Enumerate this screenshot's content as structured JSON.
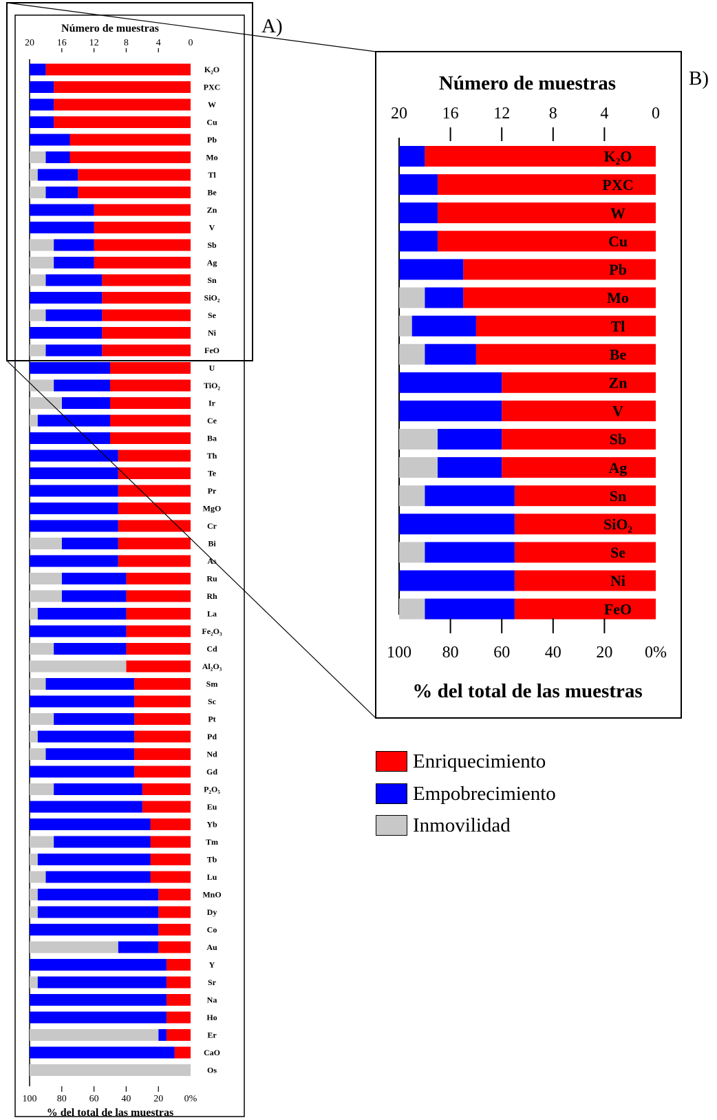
{
  "chart_data": {
    "type": "bar",
    "stacked": true,
    "orientation": "horizontal",
    "panel_a_label": "A)",
    "panel_b_label": "B)",
    "top_axis_title": "Número de muestras",
    "top_axis_ticks": [
      "20",
      "16",
      "12",
      "8",
      "4",
      "0"
    ],
    "top_axis_range": [
      20,
      0
    ],
    "bottom_axis_title": "% del total de las muestras",
    "bottom_axis_ticks": [
      "100",
      "80",
      "60",
      "40",
      "20",
      "0%"
    ],
    "bottom_axis_range": [
      100,
      0
    ],
    "series": [
      {
        "name": "Enriquecimiento",
        "color": "#ff0000"
      },
      {
        "name": "Empobrecimiento",
        "color": "#0000ff"
      },
      {
        "name": "Inmovilidad",
        "color": "#c8c8c8"
      }
    ],
    "categories": [
      {
        "label": "K₂O",
        "enr": 18,
        "emp": 2,
        "inm": 0
      },
      {
        "label": "PXC",
        "enr": 17,
        "emp": 3,
        "inm": 0
      },
      {
        "label": "W",
        "enr": 17,
        "emp": 3,
        "inm": 0
      },
      {
        "label": "Cu",
        "enr": 17,
        "emp": 3,
        "inm": 0
      },
      {
        "label": "Pb",
        "enr": 15,
        "emp": 5,
        "inm": 0
      },
      {
        "label": "Mo",
        "enr": 15,
        "emp": 3,
        "inm": 2
      },
      {
        "label": "Tl",
        "enr": 14,
        "emp": 5,
        "inm": 1
      },
      {
        "label": "Be",
        "enr": 14,
        "emp": 4,
        "inm": 2
      },
      {
        "label": "Zn",
        "enr": 12,
        "emp": 8,
        "inm": 0
      },
      {
        "label": "V",
        "enr": 12,
        "emp": 8,
        "inm": 0
      },
      {
        "label": "Sb",
        "enr": 12,
        "emp": 5,
        "inm": 3
      },
      {
        "label": "Ag",
        "enr": 12,
        "emp": 5,
        "inm": 3
      },
      {
        "label": "Sn",
        "enr": 11,
        "emp": 7,
        "inm": 2
      },
      {
        "label": "SiO₂",
        "enr": 11,
        "emp": 9,
        "inm": 0
      },
      {
        "label": "Se",
        "enr": 11,
        "emp": 7,
        "inm": 2
      },
      {
        "label": "Ni",
        "enr": 11,
        "emp": 9,
        "inm": 0
      },
      {
        "label": "FeO",
        "enr": 11,
        "emp": 7,
        "inm": 2
      },
      {
        "label": "U",
        "enr": 10,
        "emp": 10,
        "inm": 0
      },
      {
        "label": "TiO₂",
        "enr": 10,
        "emp": 7,
        "inm": 3
      },
      {
        "label": "Ir",
        "enr": 10,
        "emp": 6,
        "inm": 4
      },
      {
        "label": "Ce",
        "enr": 10,
        "emp": 9,
        "inm": 1
      },
      {
        "label": "Ba",
        "enr": 10,
        "emp": 10,
        "inm": 0
      },
      {
        "label": "Th",
        "enr": 9,
        "emp": 11,
        "inm": 0
      },
      {
        "label": "Te",
        "enr": 9,
        "emp": 11,
        "inm": 0
      },
      {
        "label": "Pr",
        "enr": 9,
        "emp": 11,
        "inm": 0
      },
      {
        "label": "MgO",
        "enr": 9,
        "emp": 11,
        "inm": 0
      },
      {
        "label": "Cr",
        "enr": 9,
        "emp": 11,
        "inm": 0
      },
      {
        "label": "Bi",
        "enr": 9,
        "emp": 7,
        "inm": 4
      },
      {
        "label": "As",
        "enr": 9,
        "emp": 11,
        "inm": 0
      },
      {
        "label": "Ru",
        "enr": 8,
        "emp": 8,
        "inm": 4
      },
      {
        "label": "Rh",
        "enr": 8,
        "emp": 8,
        "inm": 4
      },
      {
        "label": "La",
        "enr": 8,
        "emp": 11,
        "inm": 1
      },
      {
        "label": "Fe₂O₃",
        "enr": 8,
        "emp": 12,
        "inm": 0
      },
      {
        "label": "Cd",
        "enr": 8,
        "emp": 9,
        "inm": 3
      },
      {
        "label": "Al₂O₃",
        "enr": 8,
        "emp": 0,
        "inm": 12
      },
      {
        "label": "Sm",
        "enr": 7,
        "emp": 11,
        "inm": 2
      },
      {
        "label": "Sc",
        "enr": 7,
        "emp": 13,
        "inm": 0
      },
      {
        "label": "Pt",
        "enr": 7,
        "emp": 10,
        "inm": 3
      },
      {
        "label": "Pd",
        "enr": 7,
        "emp": 12,
        "inm": 1
      },
      {
        "label": "Nd",
        "enr": 7,
        "emp": 11,
        "inm": 2
      },
      {
        "label": "Gd",
        "enr": 7,
        "emp": 13,
        "inm": 0
      },
      {
        "label": "P₂O₅",
        "enr": 6,
        "emp": 11,
        "inm": 3
      },
      {
        "label": "Eu",
        "enr": 6,
        "emp": 14,
        "inm": 0
      },
      {
        "label": "Yb",
        "enr": 5,
        "emp": 15,
        "inm": 0
      },
      {
        "label": "Tm",
        "enr": 5,
        "emp": 12,
        "inm": 3
      },
      {
        "label": "Tb",
        "enr": 5,
        "emp": 14,
        "inm": 1
      },
      {
        "label": "Lu",
        "enr": 5,
        "emp": 13,
        "inm": 2
      },
      {
        "label": "MnO",
        "enr": 4,
        "emp": 15,
        "inm": 1
      },
      {
        "label": "Dy",
        "enr": 4,
        "emp": 15,
        "inm": 1
      },
      {
        "label": "Co",
        "enr": 4,
        "emp": 16,
        "inm": 0
      },
      {
        "label": "Au",
        "enr": 4,
        "emp": 5,
        "inm": 11
      },
      {
        "label": "Y",
        "enr": 3,
        "emp": 17,
        "inm": 0
      },
      {
        "label": "Sr",
        "enr": 3,
        "emp": 16,
        "inm": 1
      },
      {
        "label": "Na",
        "enr": 3,
        "emp": 17,
        "inm": 0
      },
      {
        "label": "Ho",
        "enr": 3,
        "emp": 17,
        "inm": 0
      },
      {
        "label": "Er",
        "enr": 3,
        "emp": 1,
        "inm": 16
      },
      {
        "label": "CaO",
        "enr": 2,
        "emp": 18,
        "inm": 0
      },
      {
        "label": "Os",
        "enr": 0,
        "emp": 0,
        "inm": 20
      }
    ],
    "zoom_count": 17
  }
}
